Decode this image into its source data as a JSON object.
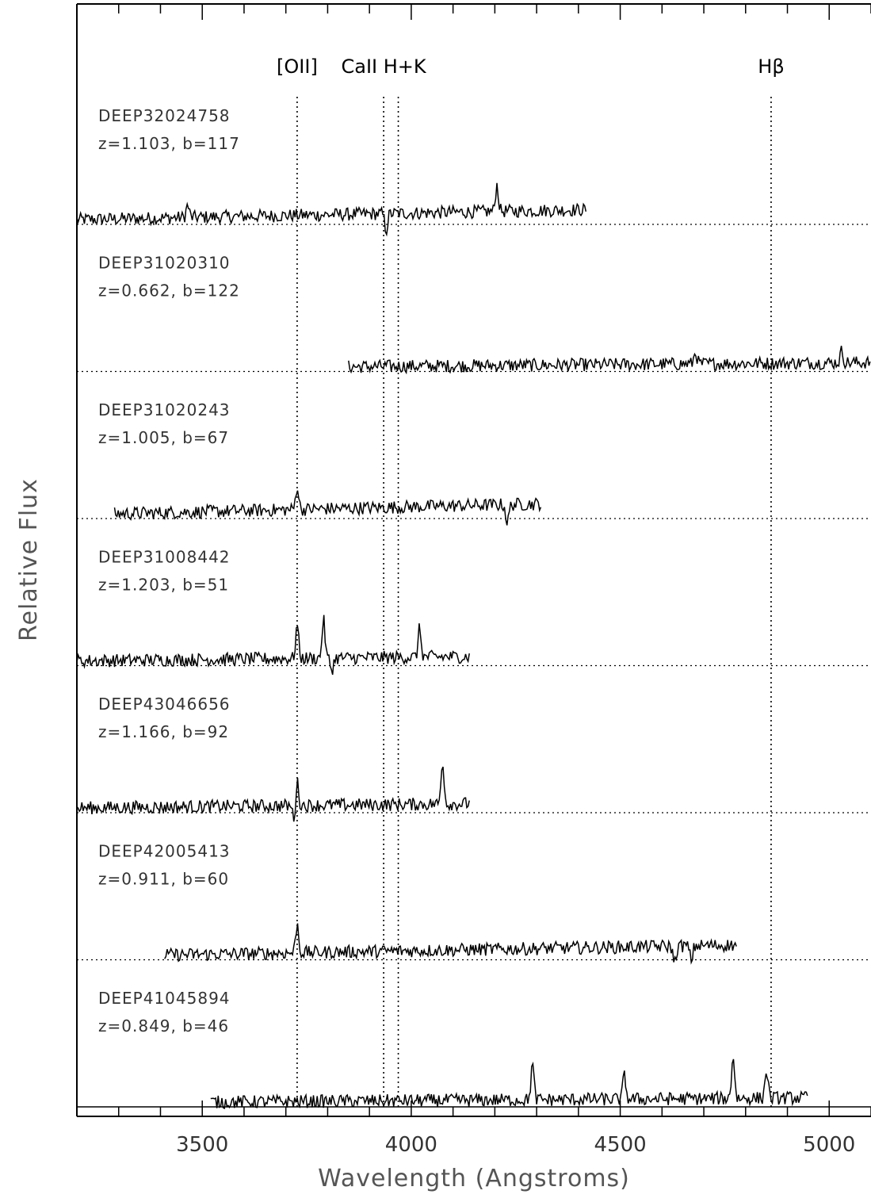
{
  "chart_data": {
    "type": "line",
    "title": "",
    "xlabel": "Wavelength (Angstroms)",
    "ylabel": "Relative Flux",
    "xlim": [
      3200,
      5100
    ],
    "x_ticks": [
      3500,
      4000,
      4500,
      5000
    ],
    "x_tick_labels": [
      "3500",
      "4000",
      "4500",
      "5000"
    ],
    "grid": false,
    "line_markers": [
      {
        "label": "[OII]",
        "wavelength": 3727
      },
      {
        "label": "CaII H+K",
        "wavelength": 3934
      },
      {
        "label": "",
        "wavelength": 3969
      },
      {
        "label": "Hβ",
        "wavelength": 4861
      }
    ],
    "series": [
      {
        "name": "DEEP32024758",
        "info": "z=1.103, b=117",
        "baseline": 6,
        "x_start": 3200,
        "x_end": 4420,
        "features": [
          [
            3940,
            -0.7
          ],
          [
            4205,
            1.1
          ],
          [
            3465,
            0.5
          ]
        ]
      },
      {
        "name": "DEEP31020310",
        "info": "z=0.662, b=122",
        "baseline": 5,
        "x_start": 3850,
        "x_end": 5100,
        "features": [
          [
            4680,
            0.5
          ],
          [
            5030,
            0.5
          ]
        ]
      },
      {
        "name": "DEEP31020243",
        "info": "z=1.005, b=67",
        "baseline": 4,
        "x_start": 3290,
        "x_end": 4310,
        "features": [
          [
            3727,
            1.0
          ],
          [
            4230,
            -0.8
          ]
        ]
      },
      {
        "name": "DEEP31008442",
        "info": "z=1.203, b=51",
        "baseline": 3,
        "x_start": 3200,
        "x_end": 4140,
        "features": [
          [
            3727,
            1.4
          ],
          [
            3790,
            1.6
          ],
          [
            4020,
            1.2
          ],
          [
            3810,
            -0.5
          ]
        ]
      },
      {
        "name": "DEEP43046656",
        "info": "z=1.166, b=92",
        "baseline": 2,
        "x_start": 3200,
        "x_end": 4140,
        "features": [
          [
            4075,
            1.8
          ],
          [
            3720,
            -0.6
          ],
          [
            3727,
            1.0
          ]
        ]
      },
      {
        "name": "DEEP42005413",
        "info": "z=0.911, b=60",
        "baseline": 1,
        "x_start": 3410,
        "x_end": 4780,
        "features": [
          [
            3727,
            1.2
          ],
          [
            4630,
            -0.7
          ],
          [
            4670,
            -0.6
          ]
        ]
      },
      {
        "name": "DEEP41045894",
        "info": "z=0.849, b=46",
        "baseline": 0,
        "x_start": 3520,
        "x_end": 4950,
        "features": [
          [
            4770,
            1.8
          ],
          [
            4850,
            1.2
          ],
          [
            4290,
            1.5
          ],
          [
            4510,
            1.0
          ]
        ]
      }
    ]
  }
}
